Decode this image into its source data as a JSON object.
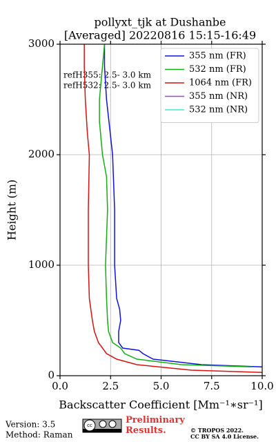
{
  "chart_data": {
    "type": "line",
    "title": "pollyxt_tjk at Dushanbe",
    "subtitle": "[Averaged] 20220816 15:15-16:49",
    "x_label": "Backscatter Coefficient [Mm⁻¹∗sr⁻¹]",
    "y_label": "Height (m)",
    "annotations": [
      "refH355:  2.5- 3.0 km",
      "refH532:  2.5- 3.0 km"
    ],
    "xlim": [
      0,
      10
    ],
    "ylim": [
      0,
      3000
    ],
    "xticks": [
      {
        "value": 0,
        "label": "0.0"
      },
      2.5,
      {
        "value": 5,
        "label": "5.0"
      },
      7.5,
      {
        "value": 10,
        "label": "10.0"
      }
    ],
    "yticks": [
      0,
      1000,
      2000,
      3000
    ],
    "grid": true,
    "legend": "upper right",
    "series": [
      {
        "name": "355 nm (FR)",
        "color": "#1010e0",
        "heights": [
          80,
          100,
          150,
          200,
          230,
          250,
          300,
          400,
          500,
          600,
          700,
          1000,
          1500,
          2000,
          2500,
          2800,
          3000
        ],
        "values": [
          10,
          7.0,
          4.6,
          4.1,
          3.9,
          3.1,
          2.9,
          2.9,
          3.0,
          2.95,
          2.8,
          2.7,
          2.7,
          2.6,
          2.3,
          2.2,
          2.2
        ]
      },
      {
        "name": "532 nm (FR)",
        "color": "#10b010",
        "heights": [
          80,
          100,
          150,
          200,
          250,
          300,
          400,
          500,
          700,
          1000,
          1500,
          1800,
          2000,
          2300,
          2500,
          2800,
          3000
        ],
        "values": [
          9.5,
          6.0,
          3.8,
          3.2,
          3.0,
          2.6,
          2.4,
          2.35,
          2.3,
          2.25,
          2.35,
          2.3,
          2.1,
          1.95,
          1.95,
          2.1,
          2.2
        ]
      },
      {
        "name": "1064 nm (FR)",
        "color": "#d81010",
        "heights": [
          30,
          50,
          100,
          150,
          200,
          250,
          300,
          400,
          500,
          700,
          1000,
          1500,
          2000,
          2200,
          2500,
          2800,
          3000
        ],
        "values": [
          10,
          6.5,
          3.8,
          2.8,
          2.3,
          2.1,
          1.9,
          1.7,
          1.6,
          1.45,
          1.4,
          1.4,
          1.45,
          1.35,
          1.25,
          1.2,
          1.2
        ]
      },
      {
        "name": "355 nm (NR)",
        "color": "#a040e0",
        "heights": [],
        "values": []
      },
      {
        "name": "532 nm (NR)",
        "color": "#40e8c8",
        "heights": [],
        "values": []
      }
    ]
  },
  "footer": {
    "version": "Version: 3.5",
    "method": "Method: Raman",
    "status": "Preliminary Results.",
    "copyright": "© TROPOS 2022.",
    "license": "CC BY SA 4.0 License."
  }
}
